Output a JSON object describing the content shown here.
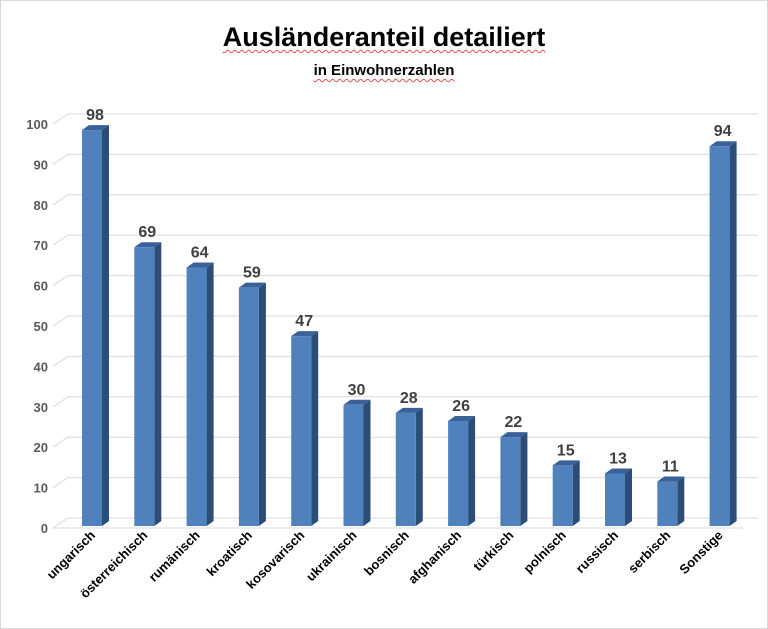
{
  "chart_data": {
    "type": "bar",
    "title": "Ausländeranteil detailiert",
    "subtitle": "in Einwohnerzahlen",
    "categories": [
      "ungarisch",
      "österreichisch",
      "rumänisch",
      "kroatisch",
      "kosovarisch",
      "ukrainisch",
      "bosnisch",
      "afghanisch",
      "türkisch",
      "polnisch",
      "russisch",
      "serbisch",
      "Sonstige"
    ],
    "values": [
      98,
      69,
      64,
      59,
      47,
      30,
      28,
      26,
      22,
      15,
      13,
      11,
      94
    ],
    "ylim": [
      0,
      100
    ],
    "yticks": [
      0,
      10,
      20,
      30,
      40,
      50,
      60,
      70,
      80,
      90,
      100
    ],
    "grid": true,
    "colors": {
      "bar_front": "#4f81bd",
      "bar_side": "#2c4d75",
      "bar_top": "#3a6298",
      "grid": "#d9d9d9"
    }
  }
}
